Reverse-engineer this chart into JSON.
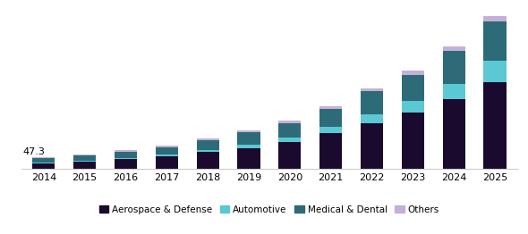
{
  "years": [
    2014,
    2015,
    2016,
    2017,
    2018,
    2019,
    2020,
    2021,
    2022,
    2023,
    2024,
    2025
  ],
  "aerospace_defense": [
    22,
    30,
    40,
    52,
    70,
    88,
    115,
    150,
    195,
    240,
    295,
    370
  ],
  "automotive": [
    3,
    4,
    5,
    6,
    9,
    14,
    18,
    28,
    38,
    50,
    68,
    90
  ],
  "medical_dental": [
    18,
    22,
    26,
    33,
    42,
    52,
    62,
    76,
    96,
    110,
    138,
    168
  ],
  "others": [
    4.3,
    5,
    6,
    7,
    8,
    9,
    10,
    12,
    15,
    18,
    20,
    25
  ],
  "colors": {
    "aerospace_defense": "#1a0a2e",
    "automotive": "#5bc8d4",
    "medical_dental": "#2d6b78",
    "others": "#c5b0d5"
  },
  "annotation_text": "47.3",
  "legend_labels": [
    "Aerospace & Defense",
    "Automotive",
    "Medical & Dental",
    "Others"
  ],
  "bar_width": 0.55,
  "ylim": [
    0,
    680
  ],
  "figsize": [
    5.9,
    2.62
  ],
  "dpi": 100
}
